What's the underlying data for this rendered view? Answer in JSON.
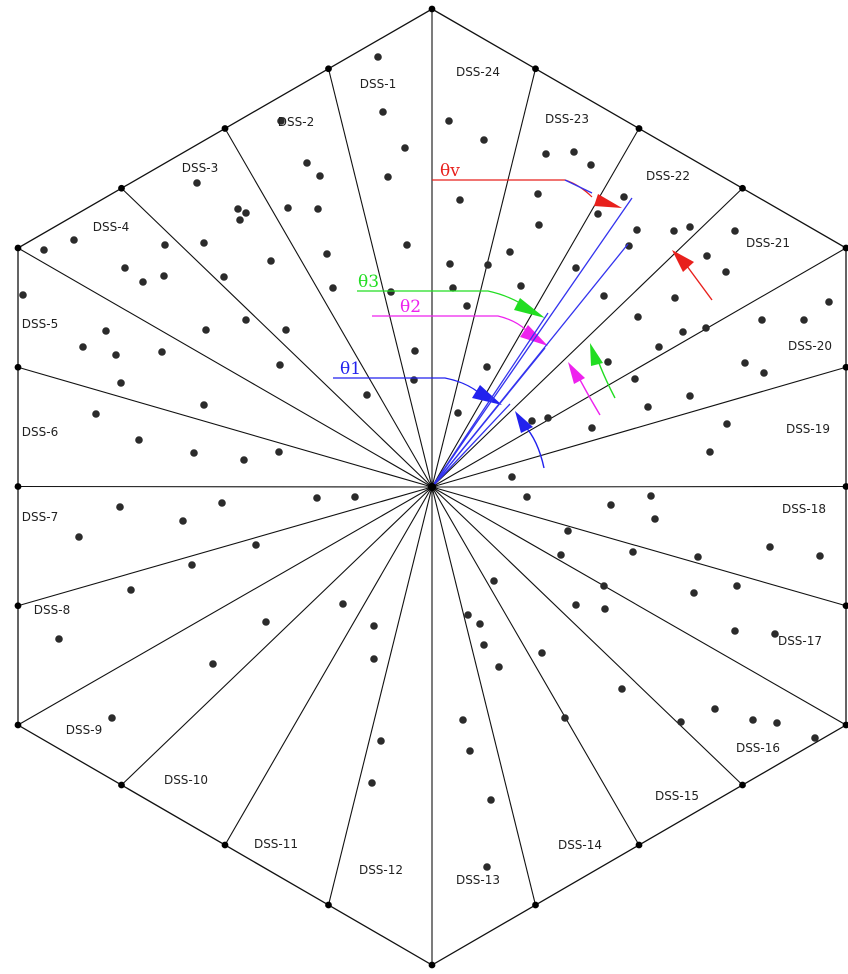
{
  "diagram": {
    "sector_labels": [
      "DSS-1",
      "DSS-2",
      "DSS-3",
      "DSS-4",
      "DSS-5",
      "DSS-6",
      "DSS-7",
      "DSS-8",
      "DSS-9",
      "DSS-10",
      "DSS-11",
      "DSS-12",
      "DSS-13",
      "DSS-14",
      "DSS-15",
      "DSS-16",
      "DSS-17",
      "DSS-18",
      "DSS-19",
      "DSS-20",
      "DSS-21",
      "DSS-22",
      "DSS-23",
      "DSS-24"
    ],
    "angle_labels": {
      "theta_v": "θv",
      "theta_3": "θ3",
      "theta_2": "θ2",
      "theta_1": "θ1"
    },
    "colors": {
      "theta_v": "#e8201c",
      "theta_3": "#22dd22",
      "theta_2": "#ee22ee",
      "theta_1": "#2222ee",
      "beam": "#3333ee",
      "outline": "#111111"
    }
  }
}
